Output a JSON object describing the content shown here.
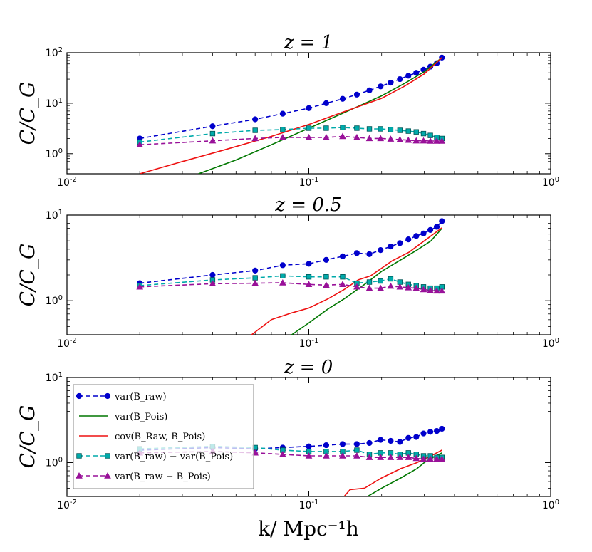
{
  "chart_data": [
    {
      "type": "line",
      "title": "z = 1",
      "ylabel": "C/C_G",
      "xlabel": "",
      "xscale": "log",
      "yscale": "log",
      "xlim": [
        0.01,
        1
      ],
      "ylim": [
        0.4,
        100
      ],
      "xticks": [
        {
          "value": 0.01,
          "label": "10",
          "exp": "-2"
        },
        {
          "value": 0.1,
          "label": "10",
          "exp": "-1"
        },
        {
          "value": 1,
          "label": "10",
          "exp": "0"
        }
      ],
      "yticks": [
        {
          "value": 1,
          "label": "10",
          "exp": "0"
        },
        {
          "value": 10,
          "label": "10",
          "exp": "1"
        },
        {
          "value": 100,
          "label": "10",
          "exp": "2"
        }
      ],
      "series": [
        {
          "key": "var_raw",
          "color": "#0000cc",
          "dash": "6,4",
          "marker": "circle",
          "x": [
            0.02,
            0.04,
            0.06,
            0.078,
            0.1,
            0.118,
            0.138,
            0.158,
            0.178,
            0.198,
            0.218,
            0.238,
            0.258,
            0.278,
            0.298,
            0.318,
            0.338,
            0.355
          ],
          "y": [
            2.0,
            3.5,
            4.8,
            6.2,
            8.0,
            10.0,
            12.2,
            14.8,
            18.0,
            21.5,
            25.5,
            30.0,
            35.0,
            40.0,
            46.0,
            53.0,
            62.0,
            80.0
          ]
        },
        {
          "key": "var_pois",
          "color": "#007700",
          "dash": "",
          "marker": "none",
          "x": [
            0.035,
            0.05,
            0.07,
            0.1,
            0.14,
            0.2,
            0.25,
            0.3,
            0.355
          ],
          "y": [
            0.4,
            0.75,
            1.5,
            3.2,
            6.5,
            14.0,
            25.0,
            42.0,
            80.0
          ]
        },
        {
          "key": "cov",
          "color": "#ee1111",
          "dash": "",
          "marker": "none",
          "x": [
            0.02,
            0.03,
            0.045,
            0.07,
            0.1,
            0.14,
            0.2,
            0.25,
            0.3,
            0.355
          ],
          "y": [
            0.4,
            0.7,
            1.2,
            2.2,
            3.8,
            6.8,
            12.5,
            22.0,
            38.0,
            80.0
          ]
        },
        {
          "key": "var_diff",
          "color": "#00aaaa",
          "dash": "6,4",
          "marker": "square",
          "x": [
            0.02,
            0.04,
            0.06,
            0.078,
            0.1,
            0.118,
            0.138,
            0.158,
            0.178,
            0.198,
            0.218,
            0.238,
            0.258,
            0.278,
            0.298,
            0.318,
            0.338,
            0.355
          ],
          "y": [
            1.7,
            2.5,
            2.9,
            3.0,
            3.2,
            3.2,
            3.3,
            3.2,
            3.1,
            3.1,
            3.0,
            2.9,
            2.8,
            2.7,
            2.5,
            2.3,
            2.1,
            2.0
          ]
        },
        {
          "key": "var_raw_minus",
          "color": "#991199",
          "dash": "6,4",
          "marker": "triangle",
          "x": [
            0.02,
            0.04,
            0.06,
            0.078,
            0.1,
            0.118,
            0.138,
            0.158,
            0.178,
            0.198,
            0.218,
            0.238,
            0.258,
            0.278,
            0.298,
            0.318,
            0.338,
            0.355
          ],
          "y": [
            1.5,
            1.8,
            2.0,
            2.1,
            2.1,
            2.1,
            2.2,
            2.1,
            2.0,
            2.0,
            1.95,
            1.9,
            1.85,
            1.8,
            1.8,
            1.78,
            1.78,
            1.78
          ]
        }
      ]
    },
    {
      "type": "line",
      "title": "z = 0.5",
      "ylabel": "C/C_G",
      "xlabel": "",
      "xscale": "log",
      "yscale": "log",
      "xlim": [
        0.01,
        1
      ],
      "ylim": [
        0.4,
        10
      ],
      "xticks": [
        {
          "value": 0.01,
          "label": "10",
          "exp": "-2"
        },
        {
          "value": 0.1,
          "label": "10",
          "exp": "-1"
        },
        {
          "value": 1,
          "label": "10",
          "exp": "0"
        }
      ],
      "yticks": [
        {
          "value": 1,
          "label": "10",
          "exp": "0"
        },
        {
          "value": 10,
          "label": "10",
          "exp": "1"
        }
      ],
      "series": [
        {
          "key": "var_raw",
          "color": "#0000cc",
          "dash": "6,4",
          "marker": "circle",
          "x": [
            0.02,
            0.04,
            0.06,
            0.078,
            0.1,
            0.118,
            0.138,
            0.158,
            0.178,
            0.198,
            0.218,
            0.238,
            0.258,
            0.278,
            0.298,
            0.318,
            0.338,
            0.355
          ],
          "y": [
            1.6,
            2.0,
            2.25,
            2.6,
            2.7,
            3.0,
            3.3,
            3.6,
            3.5,
            3.9,
            4.3,
            4.7,
            5.2,
            5.7,
            6.1,
            6.7,
            7.3,
            8.5
          ]
        },
        {
          "key": "var_pois",
          "color": "#007700",
          "dash": "",
          "marker": "none",
          "x": [
            0.085,
            0.1,
            0.12,
            0.14,
            0.17,
            0.2,
            0.24,
            0.28,
            0.32,
            0.355
          ],
          "y": [
            0.4,
            0.55,
            0.8,
            1.05,
            1.55,
            2.2,
            3.0,
            3.9,
            5.0,
            7.0
          ]
        },
        {
          "key": "cov",
          "color": "#ee1111",
          "dash": "",
          "marker": "none",
          "x": [
            0.058,
            0.07,
            0.085,
            0.1,
            0.12,
            0.14,
            0.16,
            0.18,
            0.2,
            0.22,
            0.26,
            0.3,
            0.355
          ],
          "y": [
            0.4,
            0.6,
            0.72,
            0.82,
            1.05,
            1.35,
            1.75,
            1.95,
            2.4,
            2.9,
            3.7,
            5.0,
            7.1
          ]
        },
        {
          "key": "var_diff",
          "color": "#00aaaa",
          "dash": "6,4",
          "marker": "square",
          "x": [
            0.02,
            0.04,
            0.06,
            0.078,
            0.1,
            0.118,
            0.138,
            0.158,
            0.178,
            0.198,
            0.218,
            0.238,
            0.258,
            0.278,
            0.298,
            0.318,
            0.338,
            0.355
          ],
          "y": [
            1.5,
            1.75,
            1.85,
            1.95,
            1.9,
            1.9,
            1.9,
            1.6,
            1.65,
            1.7,
            1.8,
            1.65,
            1.55,
            1.5,
            1.45,
            1.4,
            1.4,
            1.45
          ]
        },
        {
          "key": "var_raw_minus",
          "color": "#991199",
          "dash": "6,4",
          "marker": "triangle",
          "x": [
            0.02,
            0.04,
            0.06,
            0.078,
            0.1,
            0.118,
            0.138,
            0.158,
            0.178,
            0.198,
            0.218,
            0.238,
            0.258,
            0.278,
            0.298,
            0.318,
            0.338,
            0.355
          ],
          "y": [
            1.45,
            1.58,
            1.6,
            1.62,
            1.55,
            1.52,
            1.55,
            1.45,
            1.4,
            1.4,
            1.48,
            1.45,
            1.42,
            1.4,
            1.35,
            1.32,
            1.3,
            1.3
          ]
        }
      ]
    },
    {
      "type": "line",
      "title": "z = 0",
      "ylabel": "C/C_G",
      "xlabel": "k/  Mpc⁻¹h",
      "xscale": "log",
      "yscale": "log",
      "xlim": [
        0.01,
        1
      ],
      "ylim": [
        0.4,
        10
      ],
      "xticks": [
        {
          "value": 0.01,
          "label": "10",
          "exp": "-2"
        },
        {
          "value": 0.1,
          "label": "10",
          "exp": "-1"
        },
        {
          "value": 1,
          "label": "10",
          "exp": "0"
        }
      ],
      "yticks": [
        {
          "value": 1,
          "label": "10",
          "exp": "0"
        },
        {
          "value": 10,
          "label": "10",
          "exp": "1"
        }
      ],
      "series": [
        {
          "key": "var_raw",
          "color": "#0000cc",
          "dash": "6,4",
          "marker": "circle",
          "x": [
            0.02,
            0.04,
            0.06,
            0.078,
            0.1,
            0.118,
            0.138,
            0.158,
            0.178,
            0.198,
            0.218,
            0.238,
            0.258,
            0.278,
            0.298,
            0.318,
            0.338,
            0.355
          ],
          "y": [
            1.4,
            1.5,
            1.45,
            1.5,
            1.55,
            1.6,
            1.65,
            1.65,
            1.7,
            1.85,
            1.8,
            1.75,
            1.95,
            2.0,
            2.2,
            2.3,
            2.35,
            2.5
          ]
        },
        {
          "key": "var_pois",
          "color": "#007700",
          "dash": "",
          "marker": "none",
          "x": [
            0.175,
            0.2,
            0.24,
            0.28,
            0.3,
            0.32,
            0.355
          ],
          "y": [
            0.4,
            0.5,
            0.66,
            0.85,
            1.0,
            1.12,
            1.3
          ]
        },
        {
          "key": "cov",
          "color": "#ee1111",
          "dash": "",
          "marker": "none",
          "x": [
            0.14,
            0.148,
            0.17,
            0.2,
            0.24,
            0.28,
            0.3,
            0.32,
            0.355
          ],
          "y": [
            0.4,
            0.48,
            0.5,
            0.66,
            0.85,
            1.0,
            1.1,
            1.2,
            1.4
          ]
        },
        {
          "key": "var_diff",
          "color": "#00aaaa",
          "dash": "6,4",
          "marker": "square",
          "x": [
            0.02,
            0.04,
            0.06,
            0.078,
            0.1,
            0.118,
            0.138,
            0.158,
            0.178,
            0.198,
            0.218,
            0.238,
            0.258,
            0.278,
            0.298,
            0.318,
            0.338,
            0.355
          ],
          "y": [
            1.45,
            1.55,
            1.5,
            1.4,
            1.35,
            1.35,
            1.35,
            1.4,
            1.25,
            1.3,
            1.3,
            1.25,
            1.3,
            1.25,
            1.2,
            1.2,
            1.15,
            1.15
          ]
        },
        {
          "key": "var_raw_minus",
          "color": "#991199",
          "dash": "6,4",
          "marker": "triangle",
          "x": [
            0.02,
            0.04,
            0.06,
            0.078,
            0.1,
            0.118,
            0.138,
            0.158,
            0.178,
            0.198,
            0.218,
            0.238,
            0.258,
            0.278,
            0.298,
            0.318,
            0.338,
            0.355
          ],
          "y": [
            1.3,
            1.35,
            1.3,
            1.25,
            1.2,
            1.2,
            1.2,
            1.2,
            1.15,
            1.15,
            1.15,
            1.15,
            1.15,
            1.12,
            1.1,
            1.1,
            1.1,
            1.1
          ]
        }
      ],
      "legend": {
        "placement": "upper-left",
        "entries": [
          {
            "key": "var_raw",
            "label": "var(B_raw)"
          },
          {
            "key": "var_pois",
            "label": "var(B_Pois)"
          },
          {
            "key": "cov",
            "label": "cov(B_Raw, B_Pois)"
          },
          {
            "key": "var_diff",
            "label": "var(B_raw) − var(B_Pois)"
          },
          {
            "key": "var_raw_minus",
            "label": "var(B_raw − B_Pois)"
          }
        ]
      }
    }
  ]
}
